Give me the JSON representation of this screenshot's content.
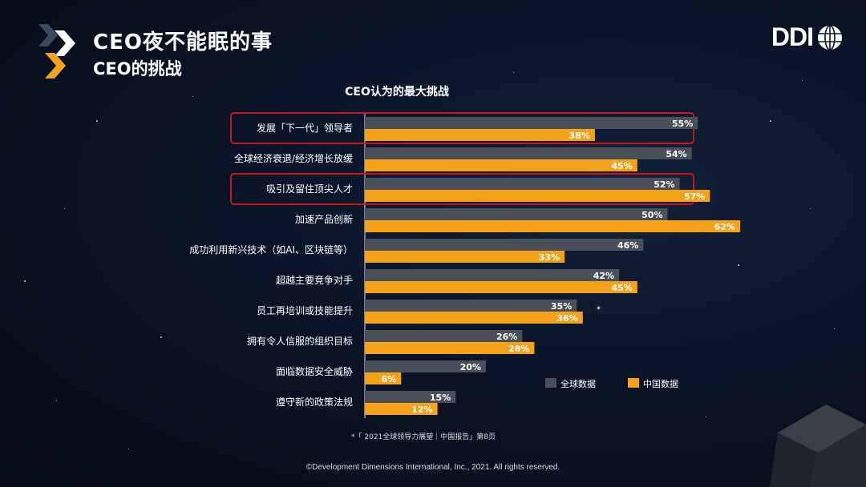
{
  "header": {
    "title": "CEO夜不能眠的事",
    "subtitle": "CEO的挑战",
    "brand": "DDI"
  },
  "colors": {
    "global": "#4a5059",
    "china": "#f5a21b",
    "highlight": "#c4161c"
  },
  "chart_data": {
    "type": "bar",
    "orientation": "horizontal",
    "title": "CEO认为的最大挑战",
    "categories": [
      "发展「下一代」领导者",
      "全球经济衰退/经济增长放缓",
      "吸引及留住顶尖人才",
      "加速产品创新",
      "成功利用新兴技术（如AI、区块链等）",
      "超越主要竞争对手",
      "员工再培训或技能提升",
      "拥有令人信服的组织目标",
      "面临数据安全威胁",
      "遵守新的政策法规"
    ],
    "series": [
      {
        "name": "全球数据",
        "color": "#4a5059",
        "values": [
          55,
          54,
          52,
          50,
          46,
          42,
          35,
          26,
          20,
          15
        ]
      },
      {
        "name": "中国数据",
        "color": "#f5a21b",
        "values": [
          38,
          45,
          57,
          62,
          33,
          45,
          36,
          28,
          6,
          12
        ]
      }
    ],
    "value_suffix": "%",
    "xlim": [
      0,
      100
    ],
    "highlighted_categories": [
      0,
      2
    ],
    "legend_position": "lower-right"
  },
  "footnote": "*「 2021全球领导力展望｜中国报告」第8页",
  "copyright": "©Development Dimensions International, Inc., 2021. All rights reserved."
}
